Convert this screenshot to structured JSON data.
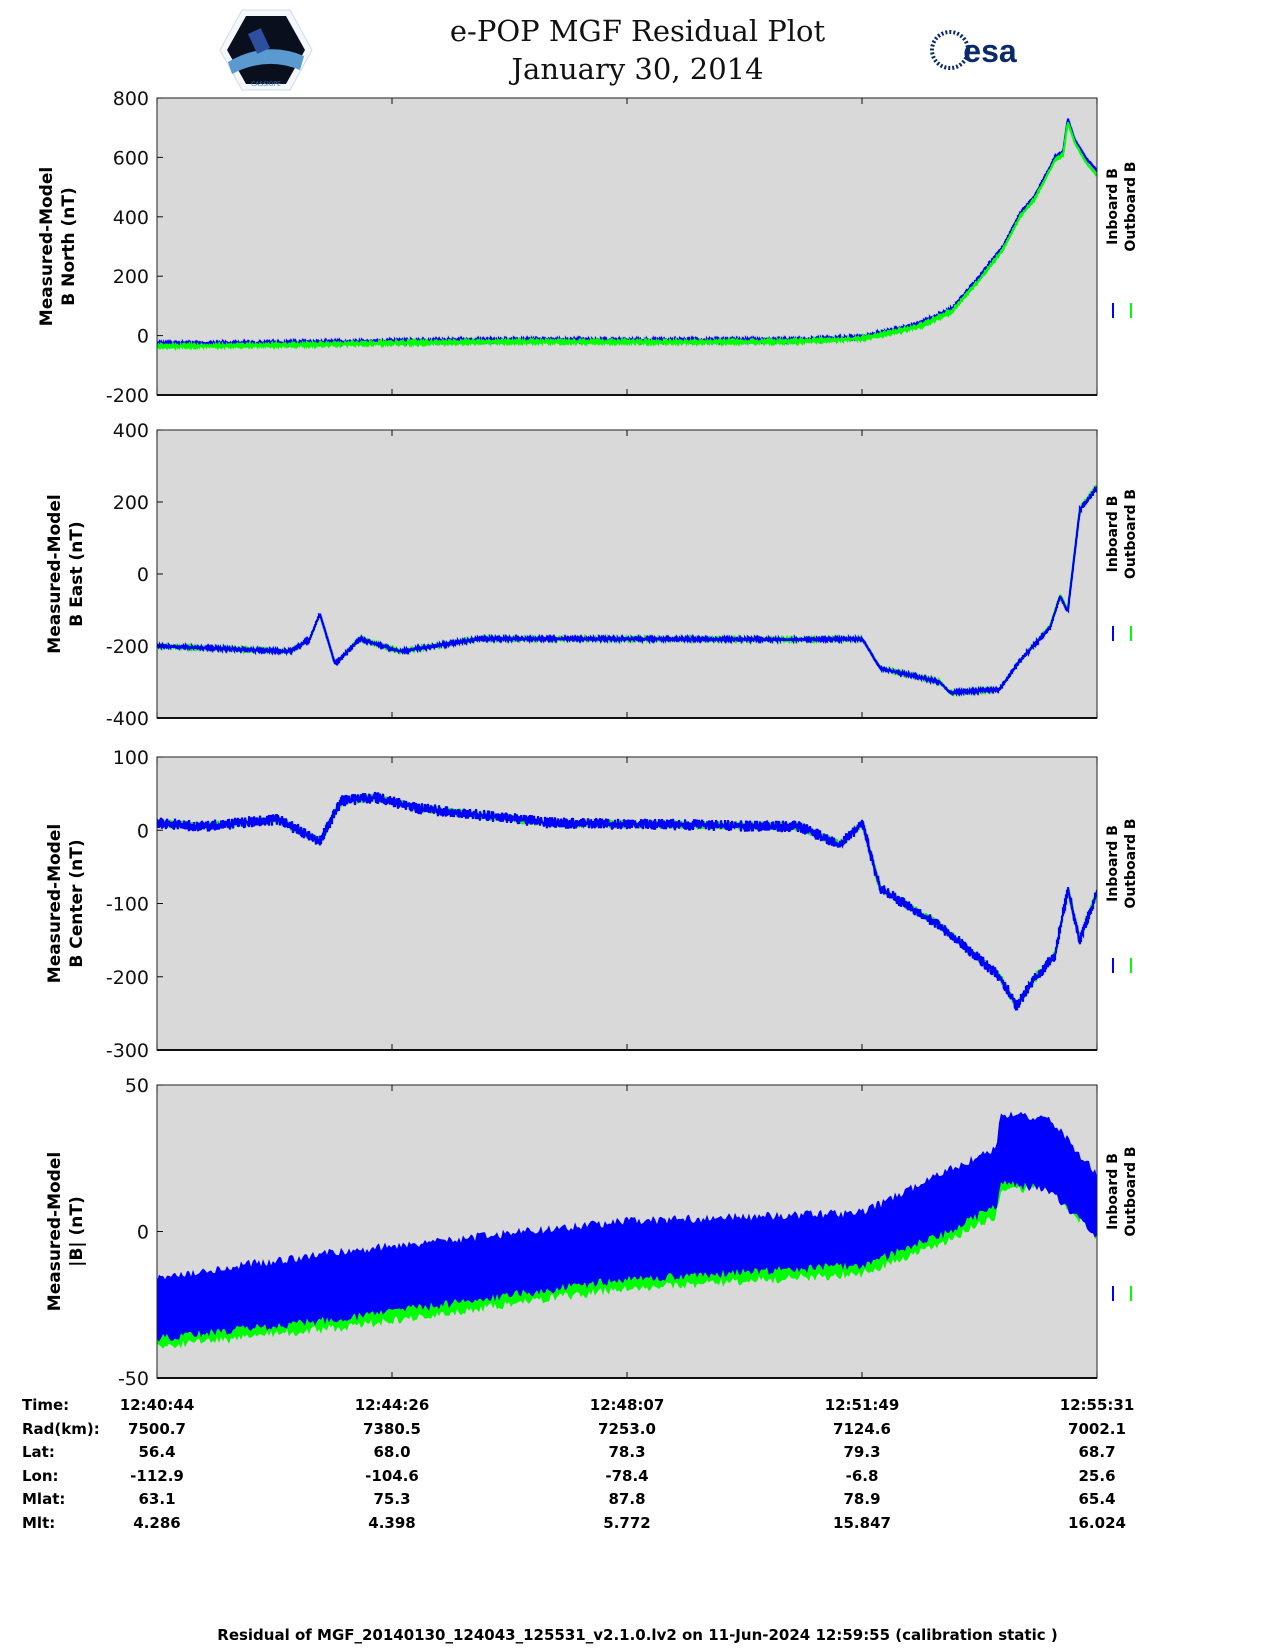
{
  "header": {
    "title": "e-POP MGF Residual Plot",
    "date": "January 30, 2014",
    "left_logo_text": "CASSIOPE",
    "right_logo_text": "esa"
  },
  "colors": {
    "inboard": "#0000ff",
    "outboard": "#00ff00",
    "plot_bg": "#d9d9d9"
  },
  "chart_data": [
    {
      "type": "line",
      "ylabel": [
        "Measured-Model",
        "B North (nT)"
      ],
      "ylim": [
        -200,
        800
      ],
      "yticks": [
        -200,
        0,
        200,
        400,
        600,
        800
      ],
      "xlabel_unit": "minutes since 12:40:44",
      "xlim": [
        0,
        14.78
      ],
      "legend": [
        "Inboard B",
        "Outboard B"
      ],
      "legend_placement": "right",
      "series": [
        {
          "name": "Inboard B",
          "noise": 4,
          "points": [
            [
              0,
              -28
            ],
            [
              2,
              -25
            ],
            [
              4,
              -18
            ],
            [
              6,
              -14
            ],
            [
              8,
              -16
            ],
            [
              10,
              -15
            ],
            [
              11.09,
              -5
            ],
            [
              11.4,
              10
            ],
            [
              12.0,
              40
            ],
            [
              12.5,
              90
            ],
            [
              12.94,
              200
            ],
            [
              13.3,
              300
            ],
            [
              13.57,
              410
            ],
            [
              13.8,
              470
            ],
            [
              14.12,
              600
            ],
            [
              14.25,
              620
            ],
            [
              14.32,
              730
            ],
            [
              14.43,
              660
            ],
            [
              14.6,
              600
            ],
            [
              14.78,
              555
            ]
          ]
        },
        {
          "name": "Outboard B",
          "noise": 4,
          "points": [
            [
              0,
              -36
            ],
            [
              2,
              -32
            ],
            [
              4,
              -24
            ],
            [
              6,
              -20
            ],
            [
              8,
              -22
            ],
            [
              10,
              -20
            ],
            [
              11.09,
              -10
            ],
            [
              11.4,
              4
            ],
            [
              12.0,
              32
            ],
            [
              12.5,
              82
            ],
            [
              12.94,
              190
            ],
            [
              13.3,
              290
            ],
            [
              13.57,
              400
            ],
            [
              13.8,
              460
            ],
            [
              14.12,
              590
            ],
            [
              14.25,
              610
            ],
            [
              14.32,
              720
            ],
            [
              14.43,
              650
            ],
            [
              14.6,
              585
            ],
            [
              14.78,
              540
            ]
          ]
        }
      ]
    },
    {
      "type": "line",
      "ylabel": [
        "Measured-Model",
        "B East (nT)"
      ],
      "ylim": [
        -400,
        400
      ],
      "yticks": [
        -400,
        -200,
        0,
        200,
        400
      ],
      "xlim": [
        0,
        14.78
      ],
      "legend": [
        "Inboard B",
        "Outboard B"
      ],
      "legend_placement": "right",
      "series": [
        {
          "name": "Outboard B",
          "noise": 3,
          "points": [
            [
              0,
              -200
            ],
            [
              2.09,
              -215
            ],
            [
              2.4,
              -182
            ],
            [
              2.56,
              -112
            ],
            [
              2.8,
              -250
            ],
            [
              3.19,
              -180
            ],
            [
              3.82,
              -215
            ],
            [
              5.08,
              -180
            ],
            [
              6.97,
              -180
            ],
            [
              10.1,
              -182
            ],
            [
              11.09,
              -180
            ],
            [
              11.37,
              -262
            ],
            [
              12.31,
              -300
            ],
            [
              12.47,
              -330
            ],
            [
              13.25,
              -320
            ],
            [
              13.57,
              -240
            ],
            [
              14.04,
              -145
            ],
            [
              14.2,
              -58
            ],
            [
              14.32,
              -100
            ],
            [
              14.51,
              182
            ],
            [
              14.78,
              246
            ]
          ]
        },
        {
          "name": "Inboard B",
          "noise": 4,
          "points": [
            [
              0,
              -200
            ],
            [
              2.09,
              -215
            ],
            [
              2.4,
              -182
            ],
            [
              2.56,
              -110
            ],
            [
              2.8,
              -250
            ],
            [
              3.19,
              -180
            ],
            [
              3.82,
              -215
            ],
            [
              5.08,
              -180
            ],
            [
              6.97,
              -180
            ],
            [
              10.1,
              -182
            ],
            [
              11.09,
              -180
            ],
            [
              11.37,
              -262
            ],
            [
              12.31,
              -300
            ],
            [
              12.47,
              -330
            ],
            [
              13.25,
              -320
            ],
            [
              13.57,
              -240
            ],
            [
              14.04,
              -150
            ],
            [
              14.2,
              -62
            ],
            [
              14.32,
              -105
            ],
            [
              14.51,
              178
            ],
            [
              14.78,
              240
            ]
          ]
        }
      ]
    },
    {
      "type": "line",
      "ylabel": [
        "Measured-Model",
        "B Center (nT)"
      ],
      "ylim": [
        -300,
        100
      ],
      "yticks": [
        -300,
        -200,
        -100,
        0,
        100
      ],
      "xlim": [
        0,
        14.78
      ],
      "legend": [
        "Inboard B",
        "Outboard B"
      ],
      "legend_placement": "right",
      "series": [
        {
          "name": "Outboard B",
          "noise": 6,
          "points": [
            [
              0,
              10
            ],
            [
              0.7,
              5
            ],
            [
              1.9,
              15
            ],
            [
              2.56,
              -15
            ],
            [
              2.9,
              40
            ],
            [
              3.43,
              45
            ],
            [
              4.1,
              30
            ],
            [
              6.18,
              10
            ],
            [
              10.1,
              5
            ],
            [
              10.74,
              -20
            ],
            [
              11.09,
              10
            ],
            [
              11.37,
              -80
            ],
            [
              12.31,
              -130
            ],
            [
              13.25,
              -200
            ],
            [
              13.52,
              -240
            ],
            [
              13.73,
              -210
            ],
            [
              14.12,
              -170
            ],
            [
              14.32,
              -80
            ],
            [
              14.51,
              -150
            ],
            [
              14.78,
              -85
            ]
          ]
        },
        {
          "name": "Inboard B",
          "noise": 8,
          "points": [
            [
              0,
              10
            ],
            [
              0.7,
              5
            ],
            [
              1.9,
              15
            ],
            [
              2.56,
              -15
            ],
            [
              2.9,
              40
            ],
            [
              3.43,
              45
            ],
            [
              4.1,
              30
            ],
            [
              6.18,
              10
            ],
            [
              10.1,
              5
            ],
            [
              10.74,
              -20
            ],
            [
              11.09,
              10
            ],
            [
              11.37,
              -80
            ],
            [
              12.31,
              -130
            ],
            [
              13.25,
              -200
            ],
            [
              13.52,
              -240
            ],
            [
              13.73,
              -210
            ],
            [
              14.12,
              -170
            ],
            [
              14.32,
              -80
            ],
            [
              14.51,
              -150
            ],
            [
              14.78,
              -85
            ]
          ]
        }
      ]
    },
    {
      "type": "area",
      "ylabel": [
        "Measured-Model",
        "|B| (nT)"
      ],
      "ylim": [
        -50,
        50
      ],
      "yticks": [
        -50,
        0,
        50
      ],
      "xlim": [
        0,
        14.78
      ],
      "legend": [
        "Inboard B",
        "Outboard B"
      ],
      "legend_placement": "right",
      "series": [
        {
          "name": "Outboard B",
          "band": [
            [
              0,
              -38,
              -30
            ],
            [
              3,
              -31,
              -22
            ],
            [
              7.3,
              -18,
              -10
            ],
            [
              11.09,
              -13,
              -5
            ],
            [
              12.31,
              -3,
              6
            ],
            [
              13.2,
              7,
              15
            ],
            [
              13.26,
              15,
              20
            ],
            [
              14.0,
              17,
              22
            ],
            [
              14.78,
              -1,
              6
            ]
          ]
        },
        {
          "name": "Inboard B",
          "band": [
            [
              0,
              -35,
              -17
            ],
            [
              3,
              -28,
              -8
            ],
            [
              7.3,
              -15,
              2
            ],
            [
              11.09,
              -10,
              5
            ],
            [
              12.31,
              0,
              18
            ],
            [
              13.2,
              10,
              27
            ],
            [
              13.26,
              18,
              38
            ],
            [
              14.0,
              16,
              38
            ],
            [
              14.78,
              0,
              18
            ]
          ]
        }
      ]
    }
  ],
  "xticks": [
    "12:40:44",
    "12:44:26",
    "12:48:07",
    "12:51:49",
    "12:55:31"
  ],
  "ephemeris": {
    "rows": [
      {
        "label": "Time:",
        "values": [
          "12:40:44",
          "12:44:26",
          "12:48:07",
          "12:51:49",
          "12:55:31"
        ]
      },
      {
        "label": "Rad(km):",
        "values": [
          "7500.7",
          "7380.5",
          "7253.0",
          "7124.6",
          "7002.1"
        ]
      },
      {
        "label": "Lat:",
        "values": [
          "56.4",
          "68.0",
          "78.3",
          "79.3",
          "68.7"
        ]
      },
      {
        "label": "Lon:",
        "values": [
          "-112.9",
          "-104.6",
          "-78.4",
          "-6.8",
          "25.6"
        ]
      },
      {
        "label": "Mlat:",
        "values": [
          "63.1",
          "75.3",
          "87.8",
          "78.9",
          "65.4"
        ]
      },
      {
        "label": "Mlt:",
        "values": [
          "4.286",
          "4.398",
          "5.772",
          "15.847",
          "16.024"
        ]
      }
    ]
  },
  "footer": "Residual of MGF_20140130_124043_125531_v2.1.0.lv2 on 11-Jun-2024 12:59:55 (calibration static )"
}
